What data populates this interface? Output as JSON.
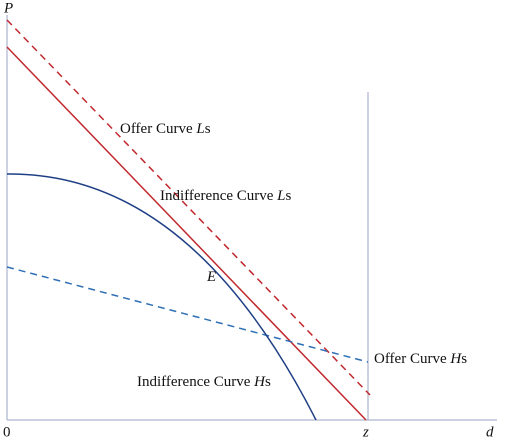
{
  "axes": {
    "y_label": "P",
    "origin_label": "0",
    "z_label": "z",
    "x_label": "d"
  },
  "labels": [
    {
      "parts": [
        "Offer Curve ",
        "L",
        "s"
      ]
    },
    {
      "parts": [
        "Indifference Curve ",
        "L",
        "s"
      ]
    },
    {
      "parts": [
        "E"
      ]
    },
    {
      "parts": [
        "Offer Curve ",
        "H",
        "s"
      ]
    },
    {
      "parts": [
        "Indifference Curve ",
        "H",
        "s"
      ]
    }
  ]
}
